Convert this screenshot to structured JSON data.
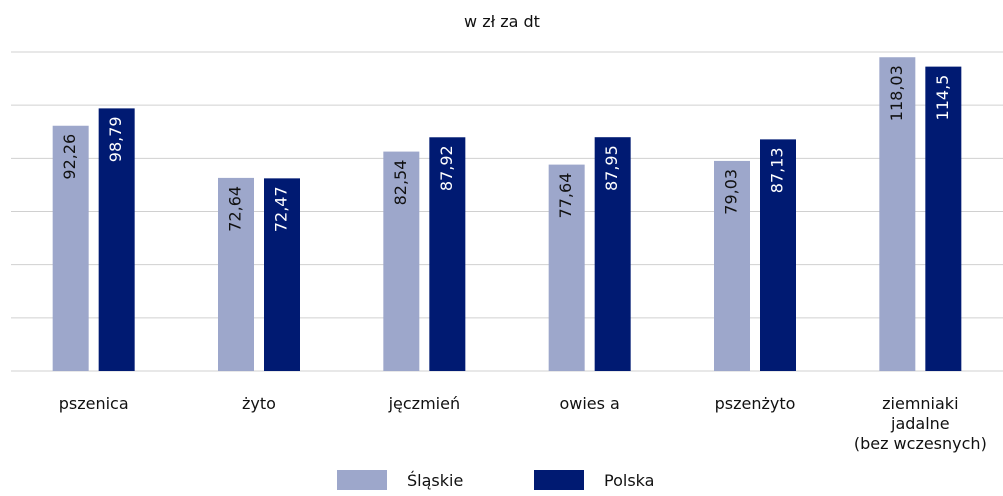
{
  "chart_data": {
    "type": "bar",
    "title": "w zł za dt",
    "categories": [
      "pszenica",
      "żyto",
      "jęczmień",
      "owies a",
      "pszenżyto",
      "ziemniaki\njadalne\n(bez wczesnych)"
    ],
    "series": [
      {
        "name": "Śląskie",
        "color": "#9da7cb",
        "values": [
          92.26,
          72.64,
          82.54,
          77.64,
          79.03,
          118.03
        ],
        "value_labels": [
          "92,26",
          "72,64",
          "82,54",
          "77,64",
          "79,03",
          "118,03"
        ]
      },
      {
        "name": "Polska",
        "color": "#001a72",
        "values": [
          98.79,
          72.47,
          87.92,
          87.95,
          87.13,
          114.5
        ],
        "value_labels": [
          "98,79",
          "72,47",
          "87,92",
          "87,95",
          "87,13",
          "114,5"
        ]
      }
    ],
    "ylim": [
      0,
      120
    ],
    "yticks": [
      0,
      20,
      40,
      60,
      80,
      100,
      120
    ],
    "grid": true
  }
}
